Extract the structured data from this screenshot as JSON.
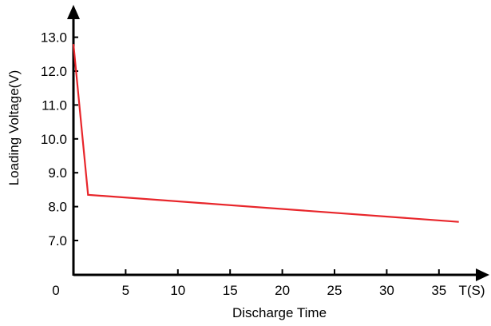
{
  "chart_data": {
    "type": "line",
    "title": "",
    "xlabel": "Discharge Time",
    "ylabel": "Loading Voltage(V)",
    "x_unit_label": "T(S)",
    "xlim": [
      0,
      40
    ],
    "ylim": [
      6.0,
      13.0
    ],
    "x_ticks": [
      0,
      5,
      10,
      15,
      20,
      25,
      30,
      35
    ],
    "x_tick_labels": [
      "0",
      "5",
      "10",
      "15",
      "20",
      "25",
      "30",
      "35"
    ],
    "y_ticks": [
      7.0,
      8.0,
      9.0,
      10.0,
      11.0,
      12.0,
      13.0
    ],
    "y_tick_labels": [
      "7.0",
      "8.0",
      "9.0",
      "10.0",
      "11.0",
      "12.0",
      "13.0"
    ],
    "grid": false,
    "legend": "none",
    "series": [
      {
        "color": "#e8262b",
        "x": [
          0,
          1.4,
          36.9
        ],
        "y": [
          12.8,
          8.35,
          7.55
        ]
      }
    ]
  }
}
